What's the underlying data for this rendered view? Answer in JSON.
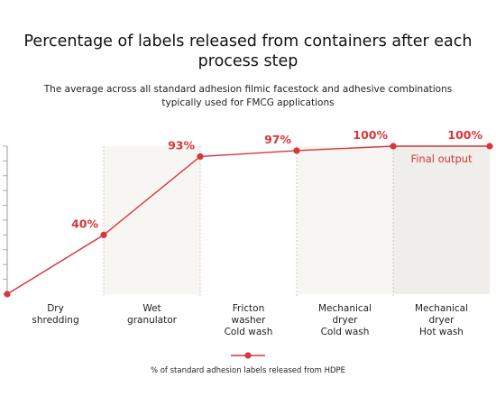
{
  "colors": {
    "series": "#d9353a",
    "shade": "#efeeea",
    "axis": "#9a9a9a",
    "divider": "#bdbdbd",
    "text": "#222222"
  },
  "chart_data": {
    "type": "line",
    "title": "Percentage of labels released from containers after each process step",
    "subtitle": "The average across all standard adhesion filmic facestock and adhesive combinations typically used for FMCG applications",
    "categories": [
      [
        "Dry",
        "shredding"
      ],
      [
        "Wet",
        "granulator"
      ],
      [
        "Fricton",
        "washer",
        "Cold wash"
      ],
      [
        "Mechanical",
        "dryer",
        "Cold wash"
      ],
      [
        "Mechanical",
        "dryer",
        "Hot wash"
      ]
    ],
    "x": [
      0,
      1,
      2,
      3,
      4,
      5
    ],
    "series": [
      {
        "name": "% of standard adhesion labels released from HDPE",
        "values": [
          0,
          40,
          93,
          97,
          100,
          100
        ],
        "labels": [
          "",
          "40%",
          "93%",
          "97%",
          "100%",
          "100%"
        ]
      }
    ],
    "ylim": [
      0,
      100
    ],
    "annotation": {
      "text": "Final output",
      "stage": 4
    },
    "legend": "bottom",
    "grid": false
  }
}
